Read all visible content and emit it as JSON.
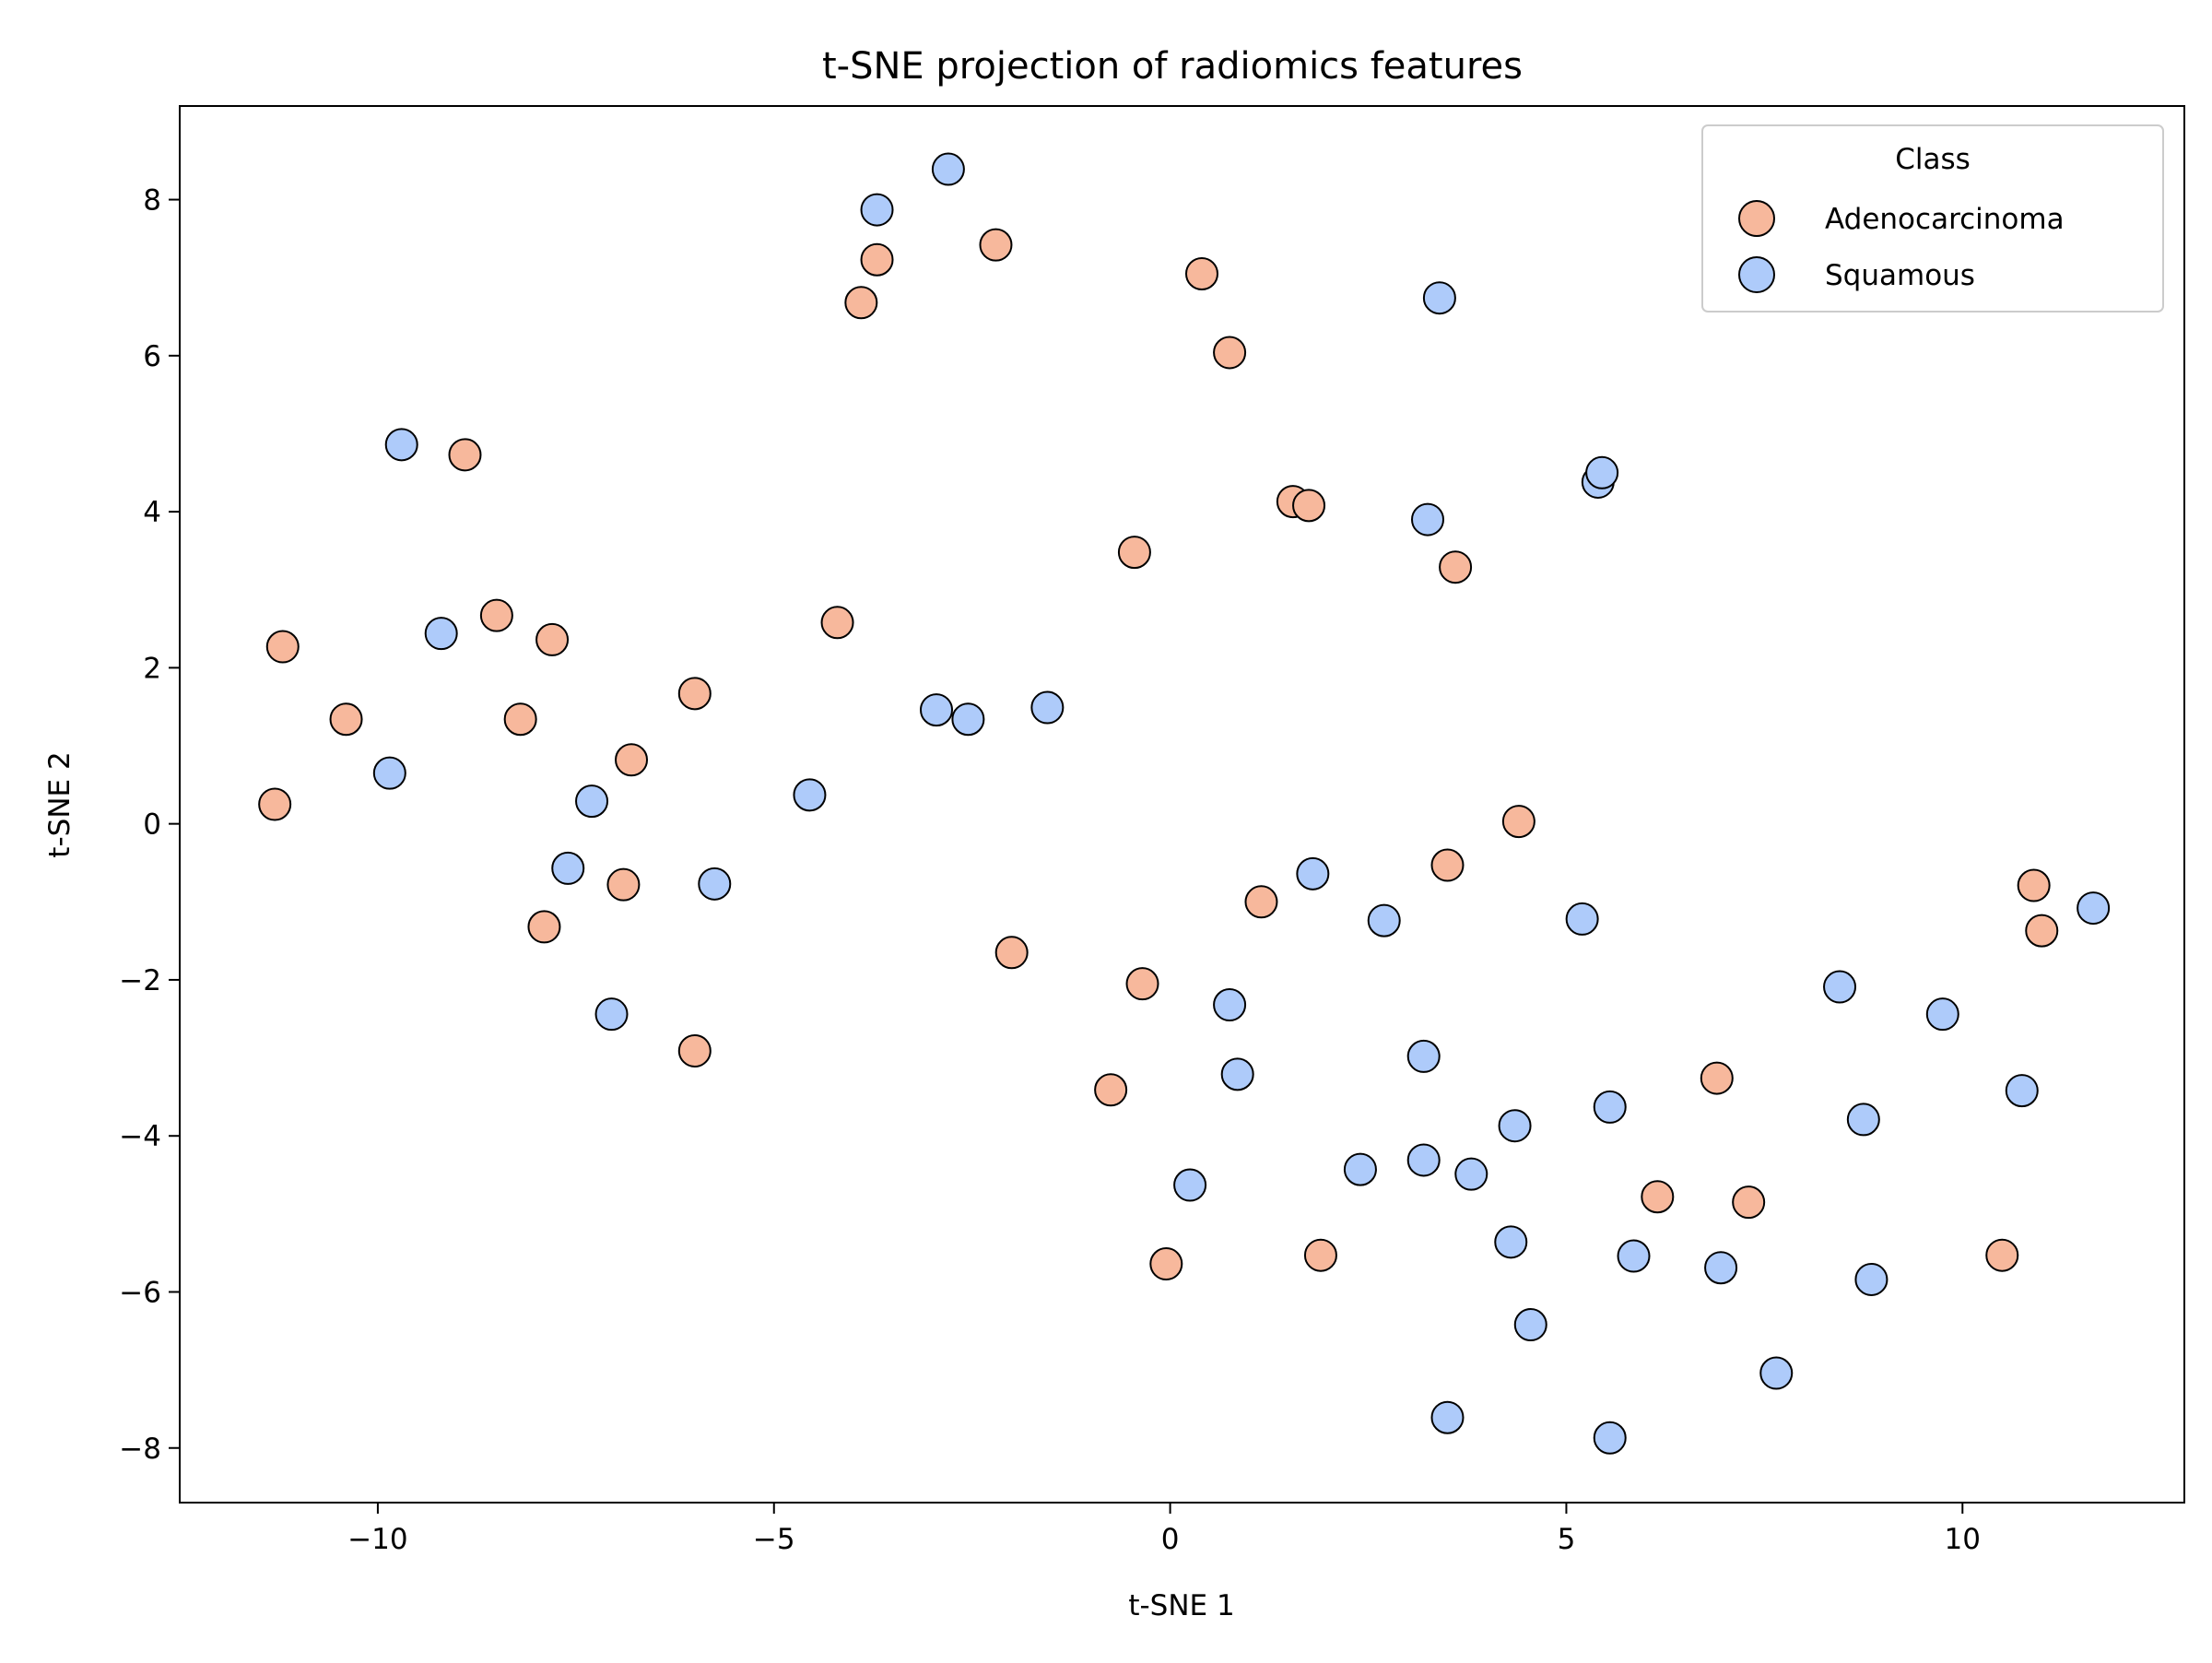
{
  "chart_data": {
    "type": "scatter",
    "title": "t-SNE projection of radiomics features",
    "xlabel": "t-SNE 1",
    "ylabel": "t-SNE 2",
    "xlim": [
      -12.5,
      12.8
    ],
    "ylim": [
      -8.7,
      9.2
    ],
    "xticks": [
      -10,
      -5,
      0,
      5,
      10
    ],
    "xtick_labels": [
      "−10",
      "−5",
      "0",
      "5",
      "10"
    ],
    "yticks": [
      -8,
      -6,
      -4,
      -2,
      0,
      2,
      4,
      6,
      8
    ],
    "ytick_labels": [
      "−8",
      "−6",
      "−4",
      "−2",
      "0",
      "2",
      "4",
      "6",
      "8"
    ],
    "grid": false,
    "legend": {
      "title": "Class",
      "placement": "top-right"
    },
    "series": [
      {
        "name": "Adenocarcinoma",
        "color": "#f7b89c",
        "points": [
          [
            -11.2,
            2.27
          ],
          [
            -10.4,
            1.34
          ],
          [
            -11.3,
            0.25
          ],
          [
            -8.9,
            4.73
          ],
          [
            -8.5,
            2.67
          ],
          [
            -7.8,
            2.36
          ],
          [
            -8.2,
            1.34
          ],
          [
            -6.8,
            0.82
          ],
          [
            -6.0,
            1.67
          ],
          [
            -6.9,
            -0.78
          ],
          [
            -7.9,
            -1.32
          ],
          [
            -6.0,
            -2.91
          ],
          [
            -4.2,
            2.58
          ],
          [
            -3.9,
            6.68
          ],
          [
            -3.7,
            7.23
          ],
          [
            -2.2,
            7.42
          ],
          [
            -2.0,
            -1.65
          ],
          [
            -0.45,
            3.48
          ],
          [
            -0.35,
            -2.05
          ],
          [
            -0.75,
            -3.41
          ],
          [
            -0.05,
            -5.64
          ],
          [
            0.4,
            7.05
          ],
          [
            0.75,
            6.04
          ],
          [
            1.55,
            4.13
          ],
          [
            1.75,
            4.08
          ],
          [
            1.15,
            -1.0
          ],
          [
            1.9,
            -5.53
          ],
          [
            3.6,
            3.29
          ],
          [
            3.5,
            -0.53
          ],
          [
            4.4,
            0.03
          ],
          [
            6.15,
            -4.78
          ],
          [
            6.9,
            -3.26
          ],
          [
            7.3,
            -4.85
          ],
          [
            10.5,
            -5.53
          ],
          [
            10.9,
            -0.79
          ],
          [
            11.0,
            -1.37
          ]
        ]
      },
      {
        "name": "Squamous",
        "color": "#aecbfa",
        "points": [
          [
            -9.7,
            4.86
          ],
          [
            -9.2,
            2.44
          ],
          [
            -9.85,
            0.65
          ],
          [
            -7.3,
            0.29
          ],
          [
            -7.6,
            -0.57
          ],
          [
            -5.75,
            -0.77
          ],
          [
            -7.05,
            -2.44
          ],
          [
            -4.55,
            0.37
          ],
          [
            -3.7,
            7.87
          ],
          [
            -2.8,
            8.39
          ],
          [
            -2.95,
            1.46
          ],
          [
            -2.55,
            1.34
          ],
          [
            -1.55,
            1.49
          ],
          [
            1.8,
            -0.64
          ],
          [
            2.7,
            -1.24
          ],
          [
            0.75,
            -2.32
          ],
          [
            0.85,
            -3.21
          ],
          [
            0.25,
            -4.63
          ],
          [
            2.4,
            -4.43
          ],
          [
            3.2,
            -2.98
          ],
          [
            3.2,
            -4.31
          ],
          [
            3.8,
            -4.49
          ],
          [
            4.35,
            -3.87
          ],
          [
            4.3,
            -5.36
          ],
          [
            4.55,
            -6.42
          ],
          [
            3.5,
            -7.61
          ],
          [
            3.4,
            6.74
          ],
          [
            3.25,
            3.9
          ],
          [
            5.4,
            4.38
          ],
          [
            5.45,
            4.5
          ],
          [
            5.2,
            -1.22
          ],
          [
            5.55,
            -3.63
          ],
          [
            5.85,
            -5.54
          ],
          [
            6.95,
            -5.69
          ],
          [
            7.65,
            -7.04
          ],
          [
            5.55,
            -7.87
          ],
          [
            8.45,
            -2.09
          ],
          [
            8.75,
            -3.79
          ],
          [
            8.85,
            -5.84
          ],
          [
            9.75,
            -2.44
          ],
          [
            10.75,
            -3.42
          ],
          [
            11.65,
            -1.08
          ]
        ]
      }
    ]
  }
}
